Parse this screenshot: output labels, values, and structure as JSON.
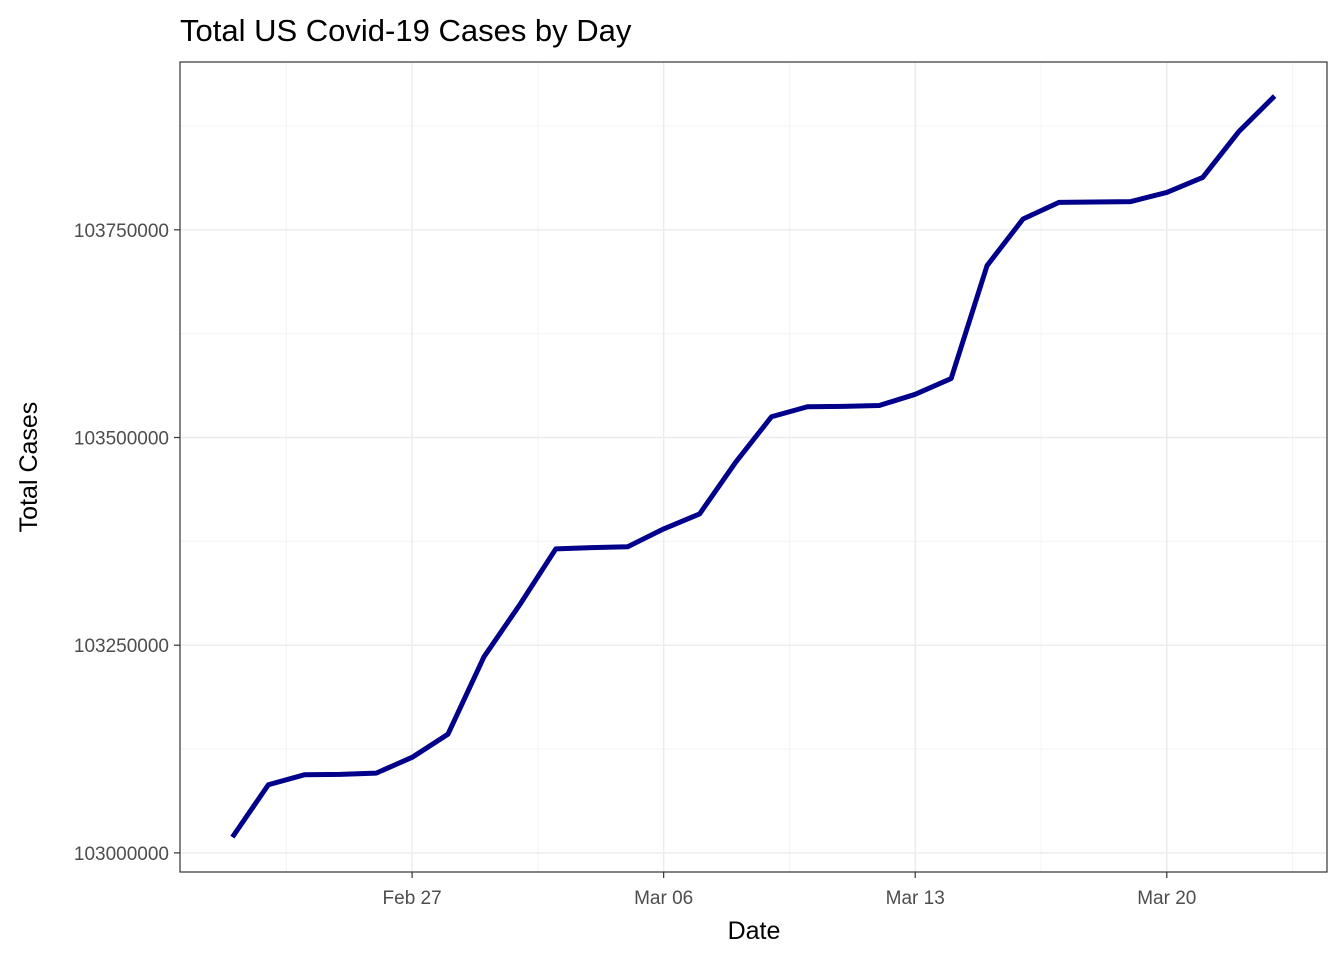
{
  "chart_data": {
    "type": "line",
    "title": "Total US Covid-19 Cases by Day",
    "xlabel": "Date",
    "ylabel": "Total Cases",
    "x": [
      "2023-02-22",
      "2023-02-23",
      "2023-02-24",
      "2023-02-25",
      "2023-02-26",
      "2023-02-27",
      "2023-02-28",
      "2023-03-01",
      "2023-03-02",
      "2023-03-03",
      "2023-03-04",
      "2023-03-05",
      "2023-03-06",
      "2023-03-07",
      "2023-03-08",
      "2023-03-09",
      "2023-03-10",
      "2023-03-11",
      "2023-03-12",
      "2023-03-13",
      "2023-03-14",
      "2023-03-15",
      "2023-03-16",
      "2023-03-17",
      "2023-03-18",
      "2023-03-19",
      "2023-03-20",
      "2023-03-21",
      "2023-03-22",
      "2023-03-23"
    ],
    "series": [
      {
        "color": "#00008b",
        "values": [
          103019000,
          103082000,
          103094000,
          103094500,
          103096000,
          103115000,
          103143000,
          103236000,
          103299000,
          103366000,
          103367500,
          103368500,
          103390000,
          103408000,
          103470000,
          103525000,
          103537000,
          103537500,
          103538500,
          103552000,
          103571000,
          103707000,
          103763000,
          103783000,
          103783500,
          103784000,
          103795000,
          103813000,
          103868000,
          103911000
        ]
      }
    ],
    "xticks": [
      {
        "date": "2023-02-27",
        "label": "Feb 27"
      },
      {
        "date": "2023-03-06",
        "label": "Mar 06"
      },
      {
        "date": "2023-03-13",
        "label": "Mar 13"
      },
      {
        "date": "2023-03-20",
        "label": "Mar 20"
      }
    ],
    "xlim": [
      "2023-02-20T13:00:00",
      "2023-03-24T11:00:00"
    ],
    "yticks": [
      103000000,
      103250000,
      103500000,
      103750000
    ],
    "ytick_labels": [
      "103000000",
      "103250000",
      "103500000",
      "103750000"
    ],
    "ylim": [
      102977000,
      103952000
    ],
    "grid": true,
    "legend": "none",
    "theme": {
      "background": "#ffffff",
      "panel_border": "#333333",
      "grid_major": "#ebebeb",
      "grid_minor": "#f5f5f5",
      "tick_color": "#333333"
    }
  }
}
